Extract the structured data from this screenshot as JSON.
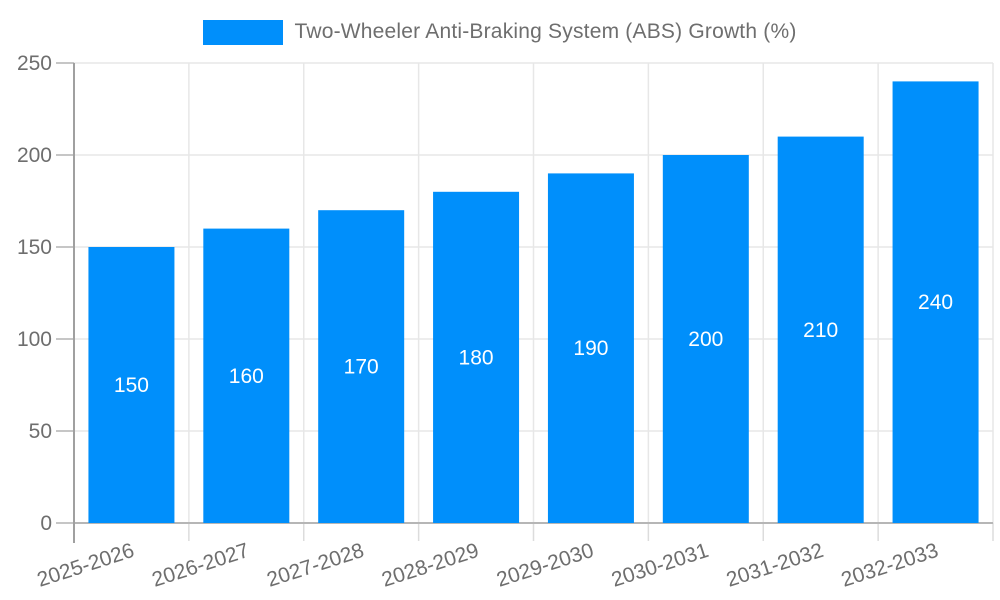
{
  "legend": {
    "label": "Two-Wheeler Anti-Braking System (ABS) Growth (%)",
    "swatch_color": "#008FFB"
  },
  "chart_data": {
    "type": "bar",
    "title": "",
    "xlabel": "",
    "ylabel": "",
    "categories": [
      "2025-2026",
      "2026-2027",
      "2027-2028",
      "2028-2029",
      "2029-2030",
      "2030-2031",
      "2031-2032",
      "2032-2033"
    ],
    "series": [
      {
        "name": "Two-Wheeler Anti-Braking System (ABS) Growth (%)",
        "values": [
          150,
          160,
          170,
          180,
          190,
          200,
          210,
          240
        ]
      }
    ],
    "data_labels": [
      "150",
      "160",
      "170",
      "180",
      "190",
      "200",
      "210",
      "240"
    ],
    "ylim": [
      0,
      250
    ],
    "yticks": [
      0,
      50,
      100,
      150,
      200,
      250
    ],
    "grid": true,
    "legend_position": "top",
    "x_label_rotation_deg": -18,
    "colors": {
      "bar": "#008FFB",
      "data_label": "#ffffff",
      "axis_label": "#6e6e6e",
      "gridline": "#e7e7e7",
      "x_tick": "#dcdcdc",
      "y_tick": "#b3b3b3",
      "x_axis_line": "#b6b6b6",
      "y_axis_line": "#a0a0a0",
      "background": "#ffffff"
    }
  }
}
